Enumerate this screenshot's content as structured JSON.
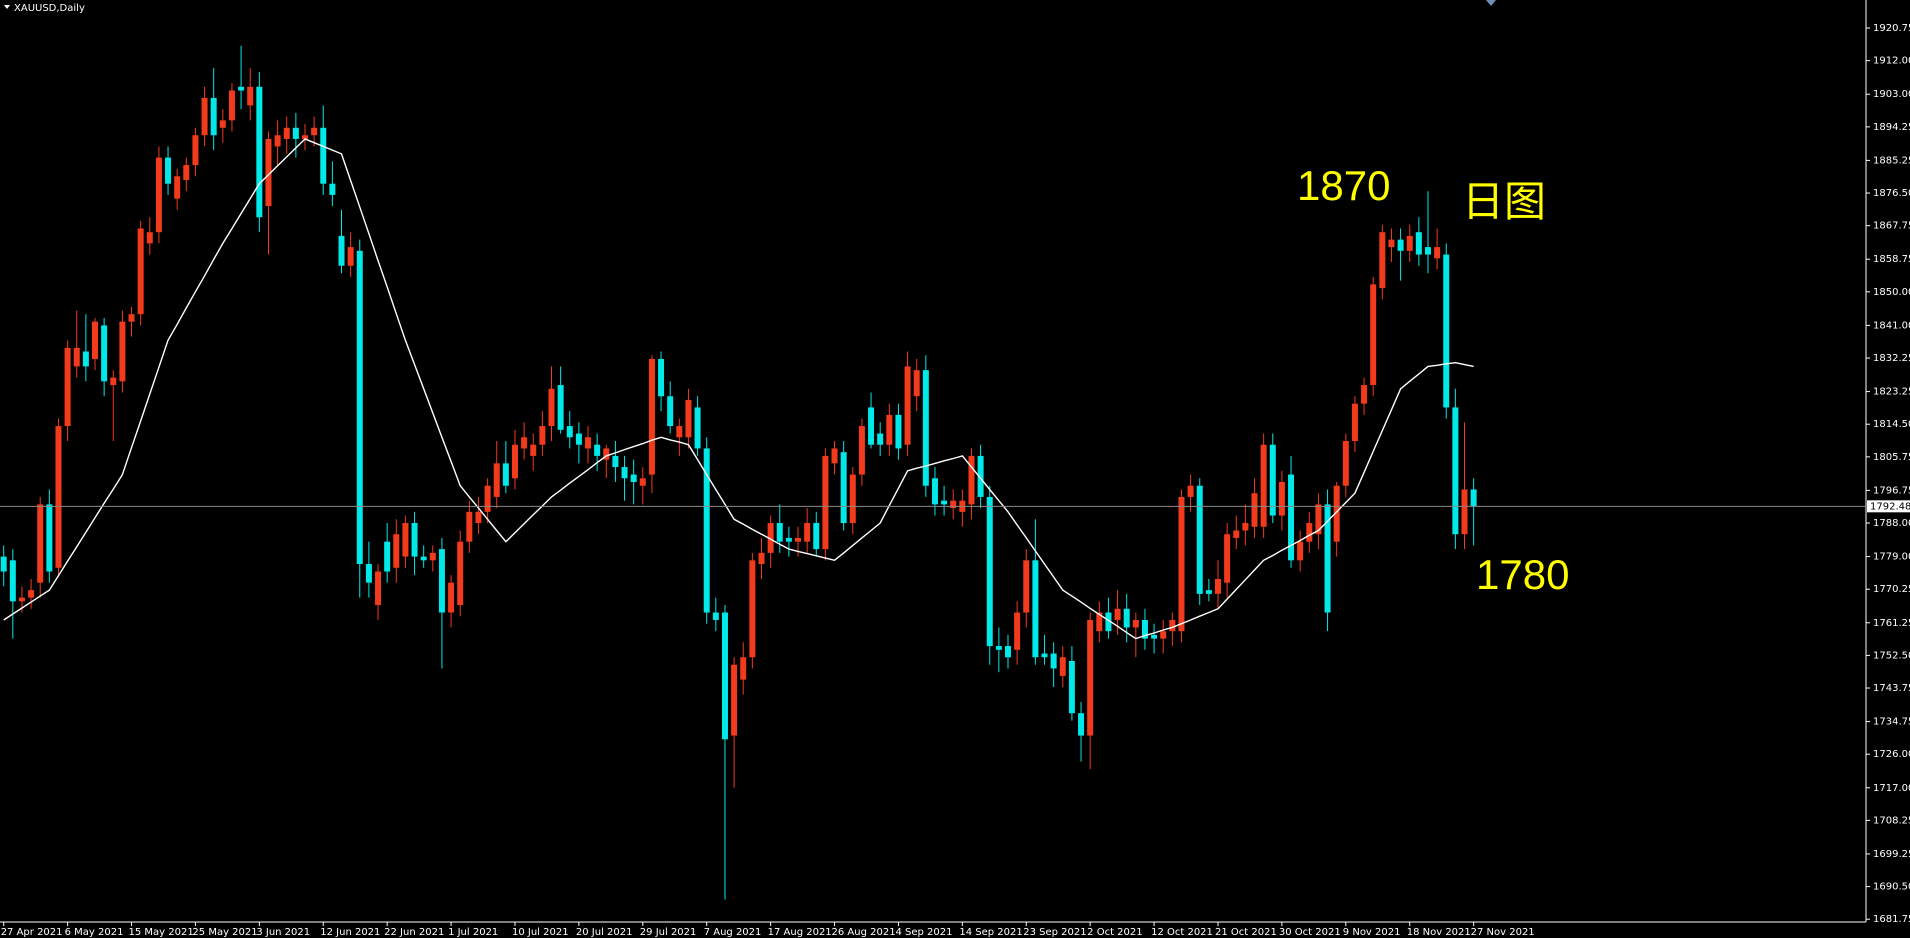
{
  "chart_data": {
    "type": "candlestick",
    "title": "XAUUSD,Daily",
    "categories": [
      "27 Apr 2021",
      null,
      null,
      null,
      null,
      null,
      null,
      "6 May 2021",
      null,
      null,
      null,
      null,
      null,
      null,
      "15 May 2021",
      null,
      null,
      null,
      null,
      null,
      null,
      "25 May 2021",
      null,
      null,
      null,
      null,
      null,
      null,
      "3 Jun 2021",
      null,
      null,
      null,
      null,
      null,
      null,
      "12 Jun 2021",
      null,
      null,
      null,
      null,
      null,
      null,
      "22 Jun 2021",
      null,
      null,
      null,
      null,
      null,
      null,
      "1 Jul 2021",
      null,
      null,
      null,
      null,
      null,
      null,
      "10 Jul 2021",
      null,
      null,
      null,
      null,
      null,
      null,
      "20 Jul 2021",
      null,
      null,
      null,
      null,
      null,
      null,
      "29 Jul 2021",
      null,
      null,
      null,
      null,
      null,
      null,
      "7 Aug 2021",
      null,
      null,
      null,
      null,
      null,
      null,
      "17 Aug 2021",
      null,
      null,
      null,
      null,
      null,
      null,
      "26 Aug 2021",
      null,
      null,
      null,
      null,
      null,
      null,
      "4 Sep 2021",
      null,
      null,
      null,
      null,
      null,
      null,
      "14 Sep 2021",
      null,
      null,
      null,
      null,
      null,
      null,
      "23 Sep 2021",
      null,
      null,
      null,
      null,
      null,
      null,
      "2 Oct 2021",
      null,
      null,
      null,
      null,
      null,
      null,
      "12 Oct 2021",
      null,
      null,
      null,
      null,
      null,
      null,
      "21 Oct 2021",
      null,
      null,
      null,
      null,
      null,
      null,
      "30 Oct 2021",
      null,
      null,
      null,
      null,
      null,
      null,
      "9 Nov 2021",
      null,
      null,
      null,
      null,
      null,
      null,
      "18 Nov 2021",
      null,
      null,
      null,
      null,
      null,
      null,
      "27 Nov 2021"
    ],
    "open": [
      1779,
      1778,
      1767,
      1768,
      1772,
      1793,
      1776,
      1814,
      1830,
      1834,
      1832,
      1841,
      1825,
      1826,
      1842,
      1844,
      1863,
      1866,
      1886,
      1875,
      1880,
      1884,
      1892,
      1902,
      1894,
      1896,
      1905,
      1900,
      1905,
      1873,
      1889,
      1891,
      1894,
      1891,
      1892,
      1894,
      1879,
      1865,
      1857,
      1861,
      1777,
      1766,
      1783,
      1776,
      1779,
      1788,
      1779,
      1778,
      1781,
      1764,
      1766,
      1783,
      1788,
      1791,
      1795,
      1804,
      1800,
      1808,
      1806,
      1809,
      1814,
      1825,
      1814,
      1812,
      1808,
      1809,
      1805,
      1806,
      1803,
      1801,
      1798,
      1801,
      1832,
      1822,
      1811,
      1811,
      1819,
      1808,
      1764,
      1764,
      1731,
      1746,
      1752,
      1777,
      1780,
      1788,
      1784,
      1783,
      1783,
      1788,
      1781,
      1804,
      1807,
      1788,
      1801,
      1819,
      1812,
      1809,
      1817,
      1809,
      1822,
      1829,
      1800,
      1794,
      1792,
      1791,
      1793,
      1806,
      1795,
      1755,
      1755,
      1754,
      1764,
      1778,
      1753,
      1753,
      1747,
      1751,
      1737,
      1731,
      1759,
      1764,
      1762,
      1765,
      1760,
      1762,
      1758,
      1757,
      1759,
      1759,
      1795,
      1798,
      1770,
      1769,
      1772,
      1784,
      1786,
      1787,
      1787,
      1809,
      1790,
      1801,
      1778,
      1783,
      1785,
      1793,
      1783,
      1798,
      1810,
      1820,
      1825,
      1851,
      1862,
      1864,
      1861,
      1866,
      1862,
      1859,
      1860,
      1819,
      1785,
      1797
    ],
    "high": [
      1782,
      1781,
      1771,
      1773,
      1795,
      1797,
      1816,
      1837,
      1845,
      1844,
      1843,
      1843,
      1829,
      1845,
      1846,
      1869,
      1870,
      1889,
      1889,
      1883,
      1886,
      1894,
      1905,
      1910,
      1899,
      1906,
      1916,
      1910,
      1909,
      1893,
      1896,
      1897,
      1898,
      1895,
      1897,
      1900,
      1885,
      1872,
      1866,
      1864,
      1783,
      1777,
      1788,
      1789,
      1790,
      1791,
      1782,
      1782,
      1784,
      1774,
      1786,
      1794,
      1795,
      1800,
      1810,
      1810,
      1813,
      1815,
      1812,
      1818,
      1830,
      1830,
      1818,
      1815,
      1814,
      1812,
      1809,
      1810,
      1806,
      1805,
      1803,
      1833,
      1834,
      1826,
      1816,
      1824,
      1822,
      1811,
      1768,
      1766,
      1752,
      1756,
      1780,
      1784,
      1790,
      1793,
      1787,
      1787,
      1792,
      1791,
      1808,
      1810,
      1810,
      1803,
      1816,
      1823,
      1815,
      1820,
      1820,
      1834,
      1832,
      1833,
      1803,
      1798,
      1797,
      1797,
      1808,
      1809,
      1798,
      1760,
      1758,
      1767,
      1781,
      1789,
      1758,
      1756,
      1755,
      1755,
      1740,
      1764,
      1767,
      1768,
      1770,
      1769,
      1764,
      1765,
      1761,
      1762,
      1764,
      1797,
      1801,
      1800,
      1773,
      1778,
      1788,
      1790,
      1793,
      1800,
      1812,
      1812,
      1802,
      1806,
      1786,
      1791,
      1796,
      1797,
      1799,
      1812,
      1822,
      1827,
      1854,
      1868,
      1867,
      1867,
      1868,
      1870,
      1877,
      1867,
      1863,
      1824,
      1815,
      1800
    ],
    "low": [
      1771,
      1757,
      1764,
      1765,
      1768,
      1772,
      1774,
      1810,
      1827,
      1826,
      1829,
      1822,
      1810,
      1823,
      1838,
      1841,
      1860,
      1863,
      1876,
      1872,
      1877,
      1881,
      1889,
      1888,
      1890,
      1893,
      1899,
      1896,
      1866,
      1860,
      1884,
      1887,
      1886,
      1888,
      1889,
      1876,
      1873,
      1855,
      1854,
      1768,
      1768,
      1762,
      1772,
      1772,
      1776,
      1774,
      1776,
      1775,
      1749,
      1760,
      1763,
      1780,
      1785,
      1788,
      1792,
      1796,
      1797,
      1805,
      1802,
      1806,
      1810,
      1812,
      1808,
      1804,
      1804,
      1802,
      1800,
      1799,
      1794,
      1793,
      1793,
      1796,
      1818,
      1812,
      1806,
      1808,
      1806,
      1761,
      1759,
      1687,
      1717,
      1742,
      1749,
      1773,
      1776,
      1780,
      1779,
      1779,
      1780,
      1779,
      1778,
      1801,
      1786,
      1785,
      1798,
      1808,
      1806,
      1806,
      1805,
      1806,
      1818,
      1795,
      1790,
      1790,
      1789,
      1787,
      1789,
      1792,
      1750,
      1748,
      1749,
      1750,
      1760,
      1750,
      1750,
      1744,
      1744,
      1735,
      1724,
      1722,
      1756,
      1757,
      1758,
      1756,
      1752,
      1754,
      1753,
      1753,
      1755,
      1756,
      1791,
      1766,
      1767,
      1765,
      1768,
      1781,
      1782,
      1784,
      1784,
      1788,
      1786,
      1776,
      1775,
      1780,
      1781,
      1759,
      1779,
      1795,
      1807,
      1817,
      1822,
      1848,
      1858,
      1853,
      1858,
      1857,
      1855,
      1856,
      1816,
      1781,
      1781,
      1782
    ],
    "close": [
      1775,
      1767,
      1768,
      1770,
      1793,
      1775,
      1814,
      1835,
      1835,
      1830,
      1842,
      1826,
      1827,
      1842,
      1844,
      1867,
      1866,
      1886,
      1879,
      1881,
      1884,
      1892,
      1902,
      1892,
      1896,
      1904,
      1904,
      1905,
      1870,
      1891,
      1892,
      1894,
      1891,
      1892,
      1894,
      1879,
      1876,
      1857,
      1862,
      1777,
      1772,
      1775,
      1775,
      1785,
      1788,
      1779,
      1778,
      1780,
      1764,
      1772,
      1783,
      1791,
      1791,
      1798,
      1804,
      1798,
      1809,
      1811,
      1809,
      1814,
      1824,
      1813,
      1811,
      1809,
      1811,
      1806,
      1808,
      1803,
      1800,
      1799,
      1800,
      1832,
      1822,
      1814,
      1814,
      1821,
      1808,
      1764,
      1762,
      1730,
      1750,
      1752,
      1778,
      1780,
      1788,
      1783,
      1783,
      1784,
      1788,
      1781,
      1806,
      1808,
      1788,
      1801,
      1814,
      1809,
      1809,
      1817,
      1808,
      1830,
      1829,
      1798,
      1793,
      1793,
      1794,
      1794,
      1806,
      1795,
      1755,
      1754,
      1752,
      1764,
      1778,
      1752,
      1752,
      1749,
      1752,
      1737,
      1731,
      1762,
      1764,
      1759,
      1765,
      1760,
      1762,
      1757,
      1757,
      1759,
      1762,
      1795,
      1798,
      1769,
      1769,
      1773,
      1785,
      1786,
      1788,
      1796,
      1809,
      1790,
      1799,
      1778,
      1783,
      1788,
      1793,
      1764,
      1798,
      1810,
      1820,
      1825,
      1852,
      1866,
      1864,
      1861,
      1865,
      1860,
      1860,
      1862,
      1819,
      1785,
      1797,
      1792.48
    ],
    "up_color": "#f23a1d",
    "down_color": "#00e8e8",
    "ma_values": [
      1762,
      1763.6,
      1765.2,
      1766.8,
      1768.4,
      1770,
      1773.9,
      1777.8,
      1781.6,
      1785.5,
      1789.4,
      1793.3,
      1797.1,
      1801,
      1808.2,
      1815.4,
      1822.6,
      1829.8,
      1837,
      1841.3,
      1845.7,
      1850,
      1854.3,
      1858.7,
      1863,
      1867,
      1871,
      1875,
      1879,
      1881.4,
      1883.8,
      1886.2,
      1888.6,
      1891,
      1890,
      1889,
      1888,
      1887,
      1879.9,
      1872.7,
      1865.6,
      1858.4,
      1851.3,
      1844.1,
      1837,
      1830.5,
      1824,
      1817.5,
      1811,
      1804.5,
      1798,
      1795,
      1792,
      1789,
      1786,
      1783,
      1785.4,
      1787.8,
      1790.2,
      1792.6,
      1795,
      1796.8,
      1798.7,
      1800.5,
      1802.3,
      1804.2,
      1806,
      1806.8,
      1807.7,
      1808.5,
      1809.3,
      1810.2,
      1811,
      1810.3,
      1809.7,
      1809,
      1805,
      1801,
      1797,
      1793,
      1789,
      1787.7,
      1786.3,
      1785,
      1783.7,
      1782.3,
      1781,
      1780.4,
      1779.8,
      1779.2,
      1778.6,
      1778,
      1780,
      1782,
      1784,
      1786,
      1788,
      1792.7,
      1797.3,
      1802,
      1802.7,
      1803.3,
      1804,
      1804.7,
      1805.3,
      1806,
      1803,
      1800,
      1797,
      1794,
      1791,
      1787.5,
      1784,
      1780.5,
      1777,
      1773.5,
      1770,
      1768.4,
      1766.8,
      1765.1,
      1763.5,
      1761.9,
      1760.3,
      1758.6,
      1757,
      1757.8,
      1758.5,
      1759.3,
      1760,
      1761,
      1762,
      1763,
      1764,
      1765,
      1767.6,
      1770.2,
      1772.8,
      1775.4,
      1778,
      1779.3,
      1780.7,
      1782,
      1783.3,
      1784.7,
      1786,
      1788.5,
      1791,
      1793.5,
      1796,
      1801.6,
      1807.2,
      1812.8,
      1818.4,
      1824,
      1826,
      1828,
      1830,
      1830.3,
      1830.7,
      1831,
      1830.5,
      1830
    ],
    "ma_color": "#ffffff",
    "current_price": 1792.48,
    "ylim": [
      1681,
      1928
    ],
    "yticks": [
      1920.75,
      {
        "value": 1912,
        "label": "1912.00"
      },
      {
        "value": 1903,
        "label": "1903.00"
      },
      1894.25,
      1885.25,
      {
        "value": 1876.5,
        "label": "1876.50"
      },
      1867.75,
      1858.75,
      {
        "value": 1850,
        "label": "1850.00"
      },
      {
        "value": 1841,
        "label": "1841.00"
      },
      1832.25,
      1823.25,
      {
        "value": 1814.5,
        "label": "1814.50"
      },
      1805.75,
      1796.75,
      {
        "value": 1788,
        "label": "1788.00"
      },
      {
        "value": 1779,
        "label": "1779.00"
      },
      1770.25,
      1761.25,
      {
        "value": 1752.5,
        "label": "1752.50"
      },
      1743.75,
      1734.75,
      {
        "value": 1726,
        "label": "1726.00"
      },
      {
        "value": 1717,
        "label": "1717.00"
      },
      1708.25,
      1699.25,
      {
        "value": 1690.5,
        "label": "1690.50"
      },
      1681.75
    ],
    "annotations": [
      "1870",
      "日图",
      "1780"
    ]
  }
}
